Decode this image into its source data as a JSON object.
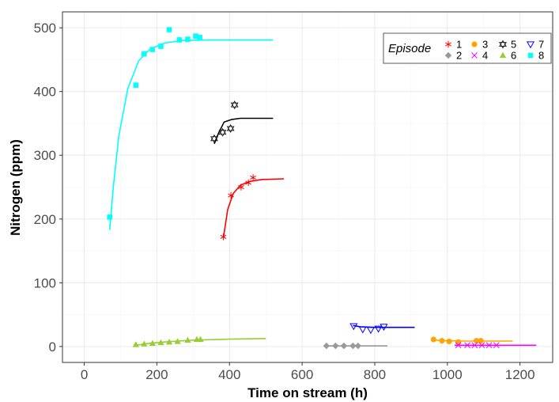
{
  "chart_data": {
    "type": "scatter",
    "title": "",
    "xlabel": "Time on stream (h)",
    "ylabel": "Nitrogen (ppm)",
    "xlim": [
      -60,
      1290
    ],
    "ylim": [
      -25,
      525
    ],
    "x_ticks": [
      0,
      200,
      400,
      600,
      800,
      1000,
      1200
    ],
    "y_ticks": [
      0,
      100,
      200,
      300,
      400,
      500
    ],
    "grid": true,
    "legend": {
      "title": "Episode",
      "position": "top-right"
    },
    "series": [
      {
        "name": "1",
        "color": "#ff0000",
        "marker": "asterisk",
        "points": [
          [
            383,
            172
          ],
          [
            404,
            237
          ],
          [
            432,
            250
          ],
          [
            452,
            257
          ],
          [
            465,
            265
          ]
        ],
        "fit": [
          [
            383,
            170
          ],
          [
            395,
            215
          ],
          [
            410,
            240
          ],
          [
            430,
            253
          ],
          [
            455,
            259
          ],
          [
            490,
            262
          ],
          [
            550,
            263
          ]
        ]
      },
      {
        "name": "2",
        "color": "#999999",
        "marker": "diamond",
        "points": [
          [
            667,
            1
          ],
          [
            692,
            1
          ],
          [
            715,
            1
          ],
          [
            740,
            1
          ],
          [
            754,
            1
          ]
        ],
        "fit": [
          [
            667,
            1
          ],
          [
            835,
            1
          ]
        ]
      },
      {
        "name": "3",
        "color": "#ffa500",
        "marker": "circle",
        "points": [
          [
            962,
            11
          ],
          [
            985,
            9
          ],
          [
            1005,
            8
          ],
          [
            1030,
            7
          ],
          [
            1080,
            9
          ],
          [
            1092,
            9
          ]
        ],
        "fit": [
          [
            962,
            10
          ],
          [
            1000,
            9
          ],
          [
            1050,
            8.5
          ],
          [
            1100,
            8.5
          ],
          [
            1180,
            8.5
          ]
        ]
      },
      {
        "name": "4",
        "color": "#ff00ff",
        "marker": "x",
        "points": [
          [
            1030,
            2
          ],
          [
            1055,
            2
          ],
          [
            1075,
            2
          ],
          [
            1095,
            2
          ],
          [
            1115,
            2
          ],
          [
            1135,
            2
          ]
        ],
        "fit": [
          [
            1020,
            2
          ],
          [
            1245,
            2
          ]
        ]
      },
      {
        "name": "5",
        "color": "#000000",
        "marker": "star-of-david",
        "points": [
          [
            358,
            326
          ],
          [
            381,
            336
          ],
          [
            403,
            342
          ],
          [
            414,
            379
          ]
        ],
        "fit": [
          [
            358,
            318
          ],
          [
            370,
            335
          ],
          [
            385,
            352
          ],
          [
            405,
            356
          ],
          [
            430,
            358
          ],
          [
            520,
            358
          ]
        ]
      },
      {
        "name": "6",
        "color": "#9acd32",
        "marker": "triangle",
        "points": [
          [
            142,
            3
          ],
          [
            165,
            4
          ],
          [
            188,
            5
          ],
          [
            211,
            6
          ],
          [
            234,
            7
          ],
          [
            257,
            8
          ],
          [
            285,
            10
          ],
          [
            310,
            11
          ],
          [
            320,
            11
          ]
        ],
        "fit": [
          [
            142,
            2
          ],
          [
            180,
            5
          ],
          [
            230,
            7.5
          ],
          [
            300,
            10
          ],
          [
            400,
            11.5
          ],
          [
            500,
            12.5
          ]
        ]
      },
      {
        "name": "7",
        "color": "#0000ff",
        "marker": "triangle-down",
        "points": [
          [
            742,
            32
          ],
          [
            767,
            27
          ],
          [
            789,
            26
          ],
          [
            810,
            28
          ],
          [
            825,
            31
          ]
        ],
        "fit": [
          [
            740,
            33
          ],
          [
            760,
            31
          ],
          [
            800,
            30
          ],
          [
            850,
            30
          ],
          [
            910,
            30
          ]
        ]
      },
      {
        "name": "8",
        "color": "#00ffff",
        "marker": "square",
        "points": [
          [
            70,
            203
          ],
          [
            142,
            410
          ],
          [
            165,
            459
          ],
          [
            188,
            466
          ],
          [
            211,
            471
          ],
          [
            234,
            497
          ],
          [
            262,
            481
          ],
          [
            285,
            482
          ],
          [
            307,
            487
          ],
          [
            318,
            485
          ]
        ],
        "fit": [
          [
            70,
            183
          ],
          [
            80,
            250
          ],
          [
            95,
            330
          ],
          [
            120,
            405
          ],
          [
            150,
            448
          ],
          [
            180,
            466
          ],
          [
            220,
            476
          ],
          [
            270,
            480
          ],
          [
            350,
            481
          ],
          [
            520,
            481
          ]
        ]
      }
    ]
  }
}
